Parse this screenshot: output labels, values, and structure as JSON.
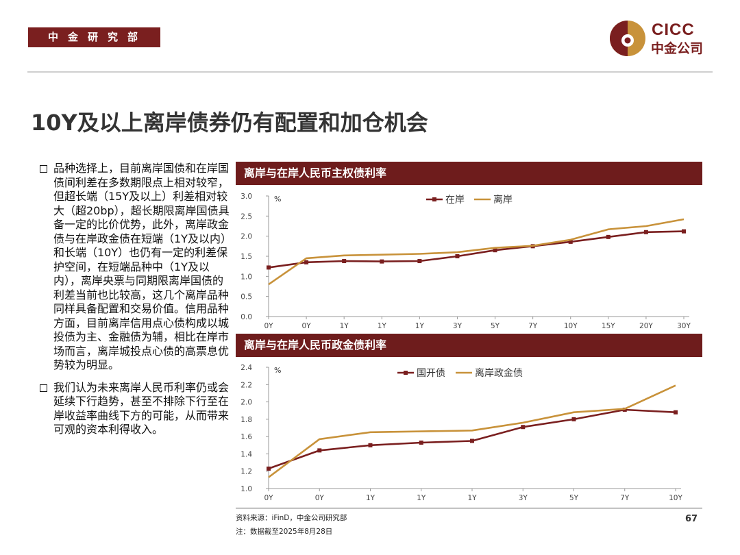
{
  "header": {
    "dept": "中金研究部",
    "logo_en": "CICC",
    "logo_zh": "中金公司"
  },
  "colors": {
    "brand": "#7a1f1f",
    "gold": "#c8923a",
    "onshore": "#7a1f1f",
    "offshore": "#c8923a"
  },
  "title": "10Y及以上离岸债券仍有配置和加仓机会",
  "bullets": [
    "品种选择上，目前离岸国债和在岸国债间利差在多数期限点上相对较窄，但超长端（15Y及以上）利差相对较大（超20bp），超长期限离岸国债具备一定的比价优势，此外，离岸政金债与在岸政金债在短端（1Y及以内）和长端（10Y）也仍有一定的利差保护空间，在短端品种中（1Y及以内），离岸央票与同期限离岸国债的利差当前也比较高，这几个离岸品种同样具备配置和交易价值。信用品种方面，目前离岸信用点心债构成以城投债为主、金融债为辅，相比在岸市场而言，离岸城投点心债的高票息优势较为明显。",
    "我们认为未来离岸人民币利率仍或会延续下行趋势，甚至不排除下行至在岸收益率曲线下方的可能，从而带来可观的资本利得收入。"
  ],
  "chart_data": [
    {
      "type": "line",
      "title": "离岸与在岸人民币主权债利率",
      "ylabel": "%",
      "categories": [
        "0Y",
        "0Y",
        "1Y",
        "1Y",
        "1Y",
        "3Y",
        "5Y",
        "7Y",
        "10Y",
        "15Y",
        "20Y",
        "30Y"
      ],
      "ylim": [
        0,
        3.0
      ],
      "yticks": [
        "0.0",
        "0.5",
        "1.0",
        "1.5",
        "2.0",
        "2.5",
        "3.0"
      ],
      "legend_position": "top",
      "series": [
        {
          "name": "在岸",
          "color": "#7a1f1f",
          "markers": true,
          "values": [
            1.22,
            1.35,
            1.38,
            1.37,
            1.38,
            1.5,
            1.65,
            1.75,
            1.86,
            1.98,
            2.1,
            2.12
          ]
        },
        {
          "name": "离岸",
          "color": "#c8923a",
          "markers": false,
          "values": [
            0.8,
            1.45,
            1.52,
            1.54,
            1.56,
            1.6,
            1.71,
            1.76,
            1.91,
            2.17,
            2.25,
            2.42
          ]
        }
      ]
    },
    {
      "type": "line",
      "title": "离岸与在岸人民币政金债利率",
      "ylabel": "%",
      "categories": [
        "0Y",
        "0Y",
        "1Y",
        "1Y",
        "1Y",
        "3Y",
        "5Y",
        "7Y",
        "10Y"
      ],
      "ylim": [
        1.0,
        2.4
      ],
      "yticks": [
        "1.0",
        "1.2",
        "1.4",
        "1.6",
        "1.8",
        "2.0",
        "2.2",
        "2.4"
      ],
      "legend_position": "top",
      "series": [
        {
          "name": "国开债",
          "color": "#7a1f1f",
          "markers": true,
          "values": [
            1.23,
            1.44,
            1.5,
            1.53,
            1.55,
            1.71,
            1.8,
            1.91,
            1.88
          ]
        },
        {
          "name": "离岸政金债",
          "color": "#c8923a",
          "markers": false,
          "values": [
            1.13,
            1.57,
            1.65,
            1.66,
            1.67,
            1.76,
            1.88,
            1.92,
            2.19
          ]
        }
      ]
    }
  ],
  "footer": {
    "source": "资料来源：iFinD，中金公司研究部",
    "note": "注：数据截至2025年8月28日",
    "page": "67"
  }
}
